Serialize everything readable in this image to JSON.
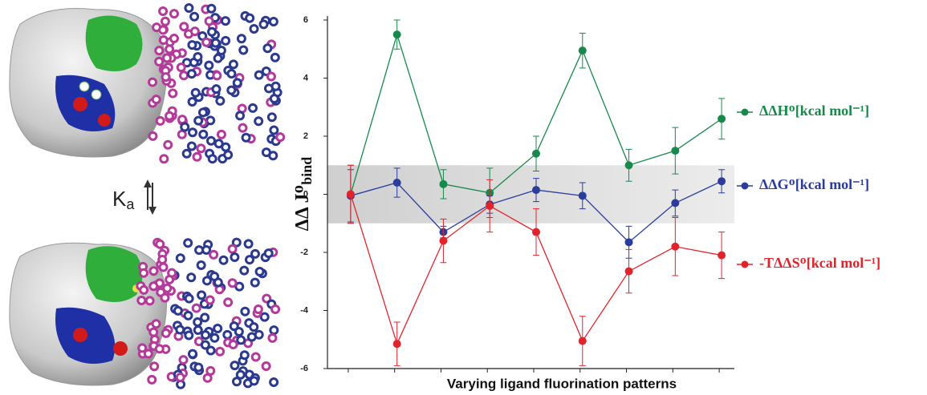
{
  "chart_data": {
    "type": "line",
    "y_label": "ΔΔ Jᴼ",
    "y_label_subscript": "bind",
    "x_label": "Varying ligand fluorination patterns",
    "categories": [
      null,
      null,
      null,
      null,
      null,
      null,
      null,
      null,
      null
    ],
    "ylim": [
      -6,
      6
    ],
    "yticks": [
      -6,
      -4,
      -2,
      0,
      2,
      4,
      6
    ],
    "shaded_band": [
      -1,
      1
    ],
    "legend": "right",
    "series": [
      {
        "name": "ΔΔHᴼ[kcal mol⁻¹]",
        "color": "#17894a",
        "values": [
          0,
          5.5,
          0.35,
          0.05,
          1.4,
          4.95,
          1.0,
          1.5,
          2.6
        ],
        "errors": [
          1.0,
          0.5,
          0.5,
          0.85,
          0.6,
          0.6,
          0.55,
          0.8,
          0.7
        ]
      },
      {
        "name": "ΔΔGᴼ[kcal mol⁻¹]",
        "color": "#2b3d9c",
        "values": [
          -0.05,
          0.4,
          -1.3,
          -0.35,
          0.15,
          -0.05,
          -1.65,
          -0.3,
          0.45
        ],
        "errors": [
          0.9,
          0.5,
          0.2,
          0.3,
          0.4,
          0.45,
          0.55,
          0.45,
          0.4
        ]
      },
      {
        "name": "-TΔΔSᴼ[kcal mol⁻¹]",
        "color": "#e1242c",
        "values": [
          0,
          -5.15,
          -1.6,
          -0.4,
          -1.3,
          -5.05,
          -2.65,
          -1.8,
          -2.1
        ],
        "errors": [
          1.0,
          0.75,
          0.75,
          0.9,
          0.8,
          0.85,
          0.75,
          1.0,
          0.8
        ]
      }
    ]
  },
  "left_panel": {
    "equilibrium_symbol": "K",
    "equilibrium_subscript": "a"
  }
}
